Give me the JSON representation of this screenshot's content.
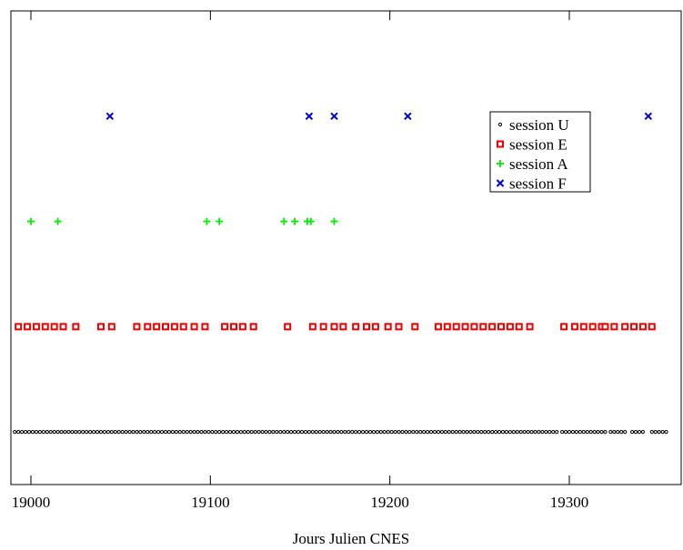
{
  "chart_data": {
    "type": "scatter",
    "title": "",
    "xlabel": "Jours Julien CNES",
    "ylabel": "",
    "xlim": [
      18990,
      19360
    ],
    "ylim": [
      0,
      4.5
    ],
    "x_ticks": [
      19000,
      19100,
      19200,
      19300
    ],
    "x_tick_labels": [
      "19000",
      "19100",
      "19200",
      "19300"
    ],
    "grid": false,
    "legend_position": "top-right",
    "series": [
      {
        "name": "session U",
        "marker": "dot",
        "color": "#000000",
        "y": 0.5,
        "x": [
          18991,
          18993,
          18995,
          18997,
          18999,
          19001,
          19003,
          19005,
          19007,
          19009,
          19011,
          19013,
          19015,
          19017,
          19019,
          19021,
          19023,
          19025,
          19027,
          19029,
          19031,
          19033,
          19035,
          19037,
          19039,
          19041,
          19043,
          19045,
          19047,
          19049,
          19051,
          19053,
          19055,
          19057,
          19059,
          19061,
          19063,
          19065,
          19067,
          19069,
          19071,
          19073,
          19075,
          19077,
          19079,
          19081,
          19083,
          19085,
          19087,
          19089,
          19091,
          19093,
          19095,
          19097,
          19099,
          19101,
          19103,
          19105,
          19107,
          19109,
          19111,
          19113,
          19115,
          19117,
          19119,
          19121,
          19123,
          19125,
          19127,
          19129,
          19131,
          19133,
          19135,
          19137,
          19139,
          19141,
          19143,
          19145,
          19147,
          19149,
          19151,
          19153,
          19155,
          19157,
          19159,
          19161,
          19163,
          19165,
          19167,
          19169,
          19171,
          19173,
          19175,
          19177,
          19179,
          19181,
          19183,
          19185,
          19187,
          19189,
          19191,
          19193,
          19195,
          19197,
          19199,
          19201,
          19203,
          19205,
          19207,
          19209,
          19211,
          19213,
          19215,
          19217,
          19219,
          19221,
          19223,
          19225,
          19227,
          19229,
          19231,
          19233,
          19235,
          19237,
          19239,
          19241,
          19243,
          19245,
          19247,
          19249,
          19251,
          19253,
          19255,
          19257,
          19259,
          19261,
          19263,
          19265,
          19267,
          19269,
          19271,
          19273,
          19275,
          19277,
          19279,
          19281,
          19283,
          19285,
          19287,
          19289,
          19291,
          19293,
          19296,
          19298,
          19300,
          19302,
          19304,
          19306,
          19308,
          19310,
          19312,
          19314,
          19316,
          19318,
          19320,
          19323,
          19325,
          19327,
          19329,
          19331,
          19335,
          19337,
          19339,
          19341,
          19346,
          19348,
          19350,
          19352,
          19354
        ]
      },
      {
        "name": "session E",
        "marker": "square",
        "color": "#ee0000",
        "y": 1.5,
        "x": [
          18993,
          18998,
          19003,
          19008,
          19013,
          19018,
          19025,
          19039,
          19045,
          19059,
          19065,
          19070,
          19075,
          19080,
          19085,
          19091,
          19097,
          19108,
          19113,
          19118,
          19124,
          19143,
          19157,
          19163,
          19169,
          19174,
          19181,
          19187,
          19192,
          19199,
          19205,
          19214,
          19227,
          19232,
          19237,
          19242,
          19247,
          19252,
          19257,
          19262,
          19267,
          19272,
          19278,
          19297,
          19303,
          19308,
          19313,
          19318,
          19320,
          19325,
          19331,
          19336,
          19341,
          19346
        ]
      },
      {
        "name": "session A",
        "marker": "plus",
        "color": "#00ee00",
        "y": 2.5,
        "x": [
          19000,
          19015,
          19098,
          19105,
          19141,
          19147,
          19154,
          19156,
          19169
        ]
      },
      {
        "name": "session F",
        "marker": "cross",
        "color": "#0000cc",
        "y": 3.5,
        "x": [
          19044,
          19155,
          19169,
          19210,
          19344
        ]
      }
    ]
  }
}
